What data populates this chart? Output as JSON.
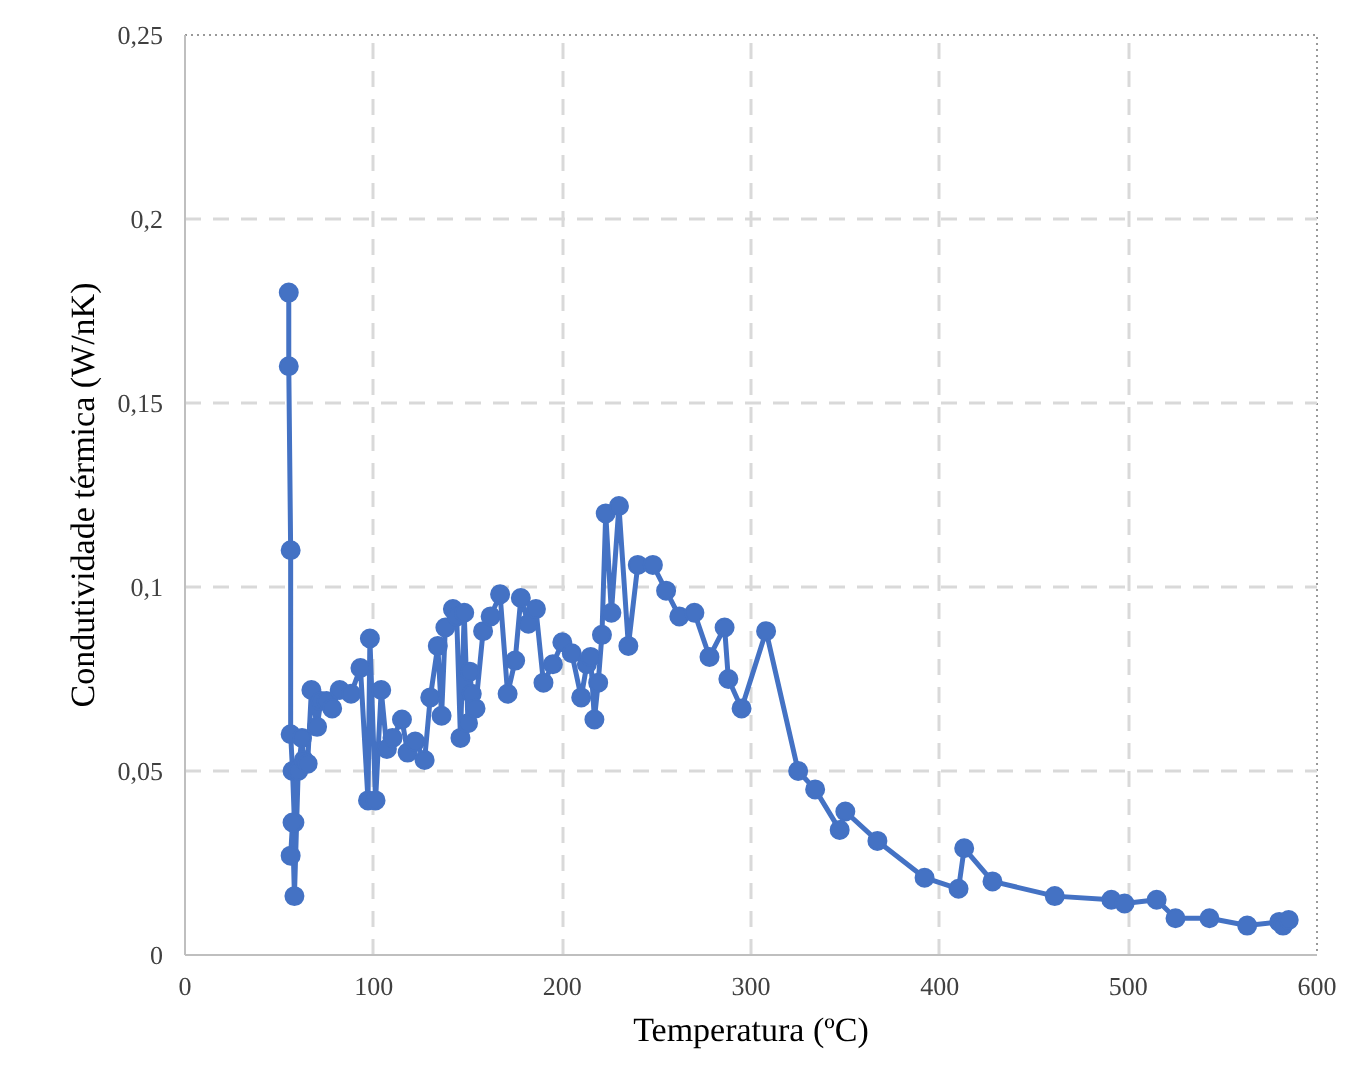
{
  "chart_data": {
    "type": "line",
    "xlabel": "Temperatura (ºC)",
    "ylabel": "Condutividade térmica (W/nK)",
    "xlim": [
      0,
      600
    ],
    "xticks": [
      0,
      100,
      200,
      300,
      400,
      500,
      600
    ],
    "ylim": [
      0,
      0.25
    ],
    "yticks": [
      0,
      {
        "value": 0.05,
        "label": "0,05"
      },
      {
        "value": 0.1,
        "label": "0,1"
      },
      {
        "value": 0.15,
        "label": "0,15"
      },
      {
        "value": 0.2,
        "label": "0,2"
      },
      {
        "value": 0.25,
        "label": "0,25"
      }
    ],
    "grid": true,
    "marker": "circle",
    "line_style": "solid",
    "series": [
      {
        "color": "#4472c4",
        "x": [
          55,
          55,
          56,
          56,
          57,
          58,
          56,
          57,
          58,
          60,
          62,
          63,
          65,
          67,
          70,
          72,
          75,
          78,
          82,
          88,
          93,
          97,
          98,
          101,
          104,
          107,
          110,
          115,
          118,
          122,
          127,
          130,
          134,
          136,
          138,
          142,
          144,
          146,
          148,
          150,
          151,
          152,
          154,
          158,
          162,
          167,
          171,
          175,
          178,
          182,
          186,
          190,
          195,
          200,
          205,
          210,
          213,
          215,
          217,
          219,
          221,
          223,
          226,
          230,
          235,
          240,
          248,
          255,
          262,
          270,
          278,
          286,
          288,
          295,
          308,
          325,
          334,
          347,
          350,
          367,
          392,
          410,
          413,
          428,
          461,
          491,
          498,
          515,
          525,
          543,
          563,
          580,
          582,
          585
        ],
        "values": [
          0.18,
          0.16,
          0.11,
          0.06,
          0.05,
          0.036,
          0.027,
          0.036,
          0.016,
          0.05,
          0.059,
          0.053,
          0.052,
          0.072,
          0.062,
          0.069,
          0.069,
          0.067,
          0.072,
          0.071,
          0.078,
          0.042,
          0.086,
          0.042,
          0.072,
          0.056,
          0.059,
          0.064,
          0.055,
          0.058,
          0.053,
          0.07,
          0.084,
          0.065,
          0.089,
          0.094,
          0.092,
          0.059,
          0.093,
          0.063,
          0.077,
          0.071,
          0.067,
          0.088,
          0.092,
          0.098,
          0.071,
          0.08,
          0.097,
          0.09,
          0.094,
          0.074,
          0.079,
          0.085,
          0.082,
          0.07,
          0.079,
          0.081,
          0.064,
          0.074,
          0.087,
          0.12,
          0.093,
          0.122,
          0.084,
          0.106,
          0.106,
          0.099,
          0.092,
          0.093,
          0.081,
          0.089,
          0.075,
          0.067,
          0.088,
          0.05,
          0.045,
          0.034,
          0.039,
          0.031,
          0.021,
          0.018,
          0.029,
          0.02,
          0.016,
          0.015,
          0.014,
          0.015,
          0.01,
          0.01,
          0.008,
          0.009,
          0.008,
          0.0095
        ]
      }
    ]
  }
}
